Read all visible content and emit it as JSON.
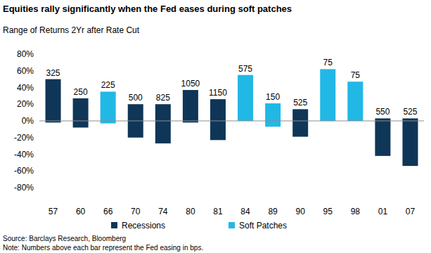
{
  "chart_data": {
    "type": "range_bar",
    "title": "Equities rally significantly when the Fed eases during soft patches",
    "subtitle": "Range of Returns 2Yr after Rate Cut",
    "source": "Source: Barclays Research, Bloomberg",
    "note": "Note: Numbers above each bar represent the Fed easing in bps.",
    "categories": [
      "57",
      "60",
      "66",
      "70",
      "74",
      "80",
      "81",
      "84",
      "89",
      "90",
      "95",
      "98",
      "01",
      "07"
    ],
    "bar_labels": [
      325,
      250,
      225,
      500,
      825,
      1050,
      1150,
      575,
      150,
      525,
      75,
      75,
      550,
      525
    ],
    "series": [
      {
        "name": "Recessions",
        "color": "#0f3657",
        "low": [
          -2,
          -8,
          null,
          -20,
          -27,
          -2,
          -23,
          null,
          null,
          -19,
          null,
          null,
          -42,
          -54
        ],
        "high": [
          50,
          27,
          null,
          20,
          20,
          37,
          26,
          null,
          null,
          14,
          null,
          null,
          3,
          3
        ]
      },
      {
        "name": "Soft Patches",
        "color": "#21b8e6",
        "low": [
          null,
          null,
          -3,
          null,
          null,
          null,
          null,
          0,
          -7,
          null,
          0,
          0,
          null,
          null
        ],
        "high": [
          null,
          null,
          35,
          null,
          null,
          null,
          null,
          55,
          21,
          null,
          62,
          47,
          null,
          null
        ]
      }
    ],
    "ylim": [
      -80,
      80
    ],
    "yticks": [
      {
        "value": -80,
        "label": "-80%"
      },
      {
        "value": -60,
        "label": "-60%"
      },
      {
        "value": -40,
        "label": "-40%"
      },
      {
        "value": -20,
        "label": "-20%"
      },
      {
        "value": 0,
        "label": "0%"
      },
      {
        "value": 20,
        "label": "20%"
      },
      {
        "value": 40,
        "label": "40%"
      },
      {
        "value": 60,
        "label": "60%"
      },
      {
        "value": 80,
        "label": "80%"
      }
    ],
    "grid": false,
    "legend": "bottom"
  }
}
